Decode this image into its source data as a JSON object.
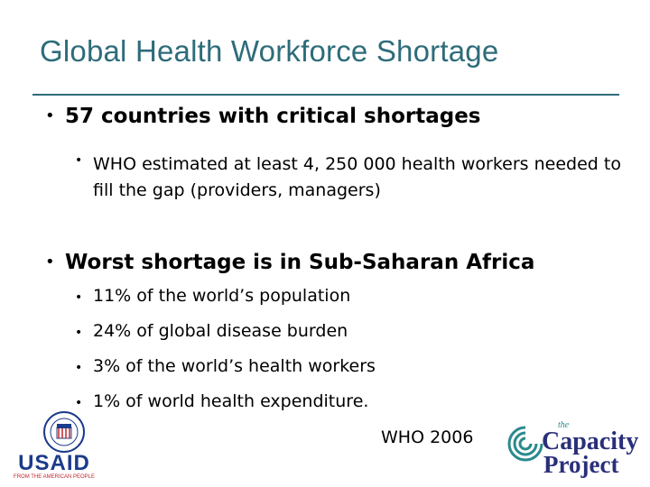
{
  "slide": {
    "title": "Global Health Workforce Shortage",
    "bullet1": "57 countries with critical shortages",
    "bullet1_sub": "WHO estimated at least 4, 250 000 health workers needed to fill the gap   (providers, managers)",
    "bullet2": "Worst shortage is in Sub-Saharan Africa",
    "bullet2_subs": [
      "11% of the world’s population",
      "24% of global disease burden",
      "3% of the world’s health workers",
      "1% of world health expenditure."
    ],
    "source": "WHO 2006",
    "bullet_glyph": "•"
  },
  "logos": {
    "usaid_text": "USAID",
    "usaid_tagline": "FROM THE AMERICAN PEOPLE",
    "capacity_the": "the",
    "capacity_word1": "Capacity",
    "capacity_word2": "Project"
  },
  "colors": {
    "title": "#2e6c7a",
    "usaid_blue": "#1b3b8b",
    "usaid_red": "#c0272d",
    "capacity_navy": "#2a2f7a",
    "capacity_teal": "#2a8a8c"
  }
}
